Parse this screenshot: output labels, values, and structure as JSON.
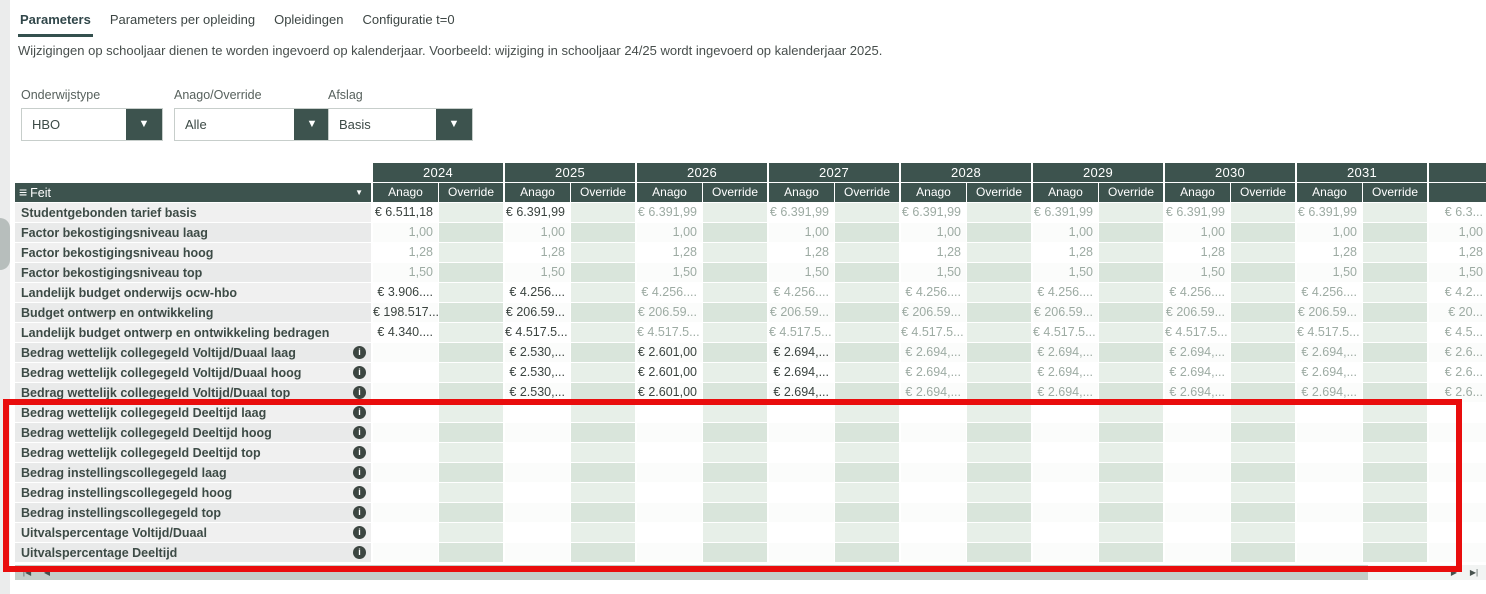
{
  "tabs": [
    {
      "label": "Parameters",
      "active": true
    },
    {
      "label": "Parameters per opleiding",
      "active": false
    },
    {
      "label": "Opleidingen",
      "active": false
    },
    {
      "label": "Configuratie t=0",
      "active": false
    }
  ],
  "note": "Wijzigingen op schooljaar dienen te worden ingevoerd op kalenderjaar. Voorbeeld: wijziging in schooljaar 24/25 wordt ingevoerd op kalenderjaar 2025.",
  "filters": [
    {
      "label": "Onderwijstype",
      "value": "HBO"
    },
    {
      "label": "Anago/Override",
      "value": "Alle"
    },
    {
      "label": "Afslag",
      "value": "Basis"
    }
  ],
  "icons": {
    "dropdown_caret": "▼",
    "menu_icon": "≡",
    "feit_caret": "▼",
    "info_icon": "i",
    "scroll_first": "|◀",
    "scroll_prev": "◀",
    "scroll_next": "▶",
    "scroll_last": "▶|"
  },
  "table": {
    "row_header_label": "Feit",
    "years": [
      "2024",
      "2025",
      "2026",
      "2027",
      "2028",
      "2029",
      "2030",
      "2031"
    ],
    "subcolumns": [
      "Anago",
      "Override"
    ],
    "rows": [
      {
        "label": "Studentgebonden tarief basis",
        "info": false,
        "values": [
          "€ 6.511,18",
          "€ 6.391,99",
          "€ 6.391,99",
          "€ 6.391,99",
          "€ 6.391,99",
          "€ 6.391,99",
          "€ 6.391,99",
          "€ 6.391,99"
        ],
        "dark": [
          true,
          true,
          false,
          false,
          false,
          false,
          false,
          false
        ],
        "extra": "€ 6.3..."
      },
      {
        "label": "Factor bekostigingsniveau laag",
        "info": false,
        "values": [
          "1,00",
          "1,00",
          "1,00",
          "1,00",
          "1,00",
          "1,00",
          "1,00",
          "1,00"
        ],
        "dark": [
          false,
          false,
          false,
          false,
          false,
          false,
          false,
          false
        ],
        "extra": "1,00"
      },
      {
        "label": "Factor bekostigingsniveau hoog",
        "info": false,
        "values": [
          "1,28",
          "1,28",
          "1,28",
          "1,28",
          "1,28",
          "1,28",
          "1,28",
          "1,28"
        ],
        "dark": [
          false,
          false,
          false,
          false,
          false,
          false,
          false,
          false
        ],
        "extra": "1,28"
      },
      {
        "label": "Factor bekostigingsniveau top",
        "info": false,
        "values": [
          "1,50",
          "1,50",
          "1,50",
          "1,50",
          "1,50",
          "1,50",
          "1,50",
          "1,50"
        ],
        "dark": [
          false,
          false,
          false,
          false,
          false,
          false,
          false,
          false
        ],
        "extra": "1,50"
      },
      {
        "label": "Landelijk budget onderwijs ocw-hbo",
        "info": false,
        "values": [
          "€ 3.906....",
          "€ 4.256....",
          "€ 4.256....",
          "€ 4.256....",
          "€ 4.256....",
          "€ 4.256....",
          "€ 4.256....",
          "€ 4.256...."
        ],
        "dark": [
          true,
          true,
          false,
          false,
          false,
          false,
          false,
          false
        ],
        "extra": "€ 4.2..."
      },
      {
        "label": "Budget ontwerp en ontwikkeling",
        "info": false,
        "values": [
          "€ 198.517...",
          "€ 206.59...",
          "€ 206.59...",
          "€ 206.59...",
          "€ 206.59...",
          "€ 206.59...",
          "€ 206.59...",
          "€ 206.59..."
        ],
        "dark": [
          true,
          true,
          false,
          false,
          false,
          false,
          false,
          false
        ],
        "extra": "€ 20..."
      },
      {
        "label": "Landelijk budget ontwerp en ontwikkeling bedragen",
        "info": false,
        "values": [
          "€ 4.340....",
          "€ 4.517.5...",
          "€ 4.517.5...",
          "€ 4.517.5...",
          "€ 4.517.5...",
          "€ 4.517.5...",
          "€ 4.517.5...",
          "€ 4.517.5..."
        ],
        "dark": [
          true,
          true,
          false,
          false,
          false,
          false,
          false,
          false
        ],
        "extra": "€ 4.5..."
      },
      {
        "label": "Bedrag wettelijk collegegeld Voltijd/Duaal laag",
        "info": true,
        "values": [
          "",
          "€ 2.530,...",
          "€ 2.601,00",
          "€ 2.694,...",
          "€ 2.694,...",
          "€ 2.694,...",
          "€ 2.694,...",
          "€ 2.694,..."
        ],
        "dark": [
          false,
          true,
          true,
          true,
          false,
          false,
          false,
          false
        ],
        "extra": "€ 2.6..."
      },
      {
        "label": "Bedrag wettelijk collegegeld Voltijd/Duaal hoog",
        "info": true,
        "values": [
          "",
          "€ 2.530,...",
          "€ 2.601,00",
          "€ 2.694,...",
          "€ 2.694,...",
          "€ 2.694,...",
          "€ 2.694,...",
          "€ 2.694,..."
        ],
        "dark": [
          false,
          true,
          true,
          true,
          false,
          false,
          false,
          false
        ],
        "extra": "€ 2.6..."
      },
      {
        "label": "Bedrag wettelijk collegegeld Voltijd/Duaal top",
        "info": true,
        "values": [
          "",
          "€ 2.530,...",
          "€ 2.601,00",
          "€ 2.694,...",
          "€ 2.694,...",
          "€ 2.694,...",
          "€ 2.694,...",
          "€ 2.694,..."
        ],
        "dark": [
          false,
          true,
          true,
          true,
          false,
          false,
          false,
          false
        ],
        "extra": "€ 2.6..."
      },
      {
        "label": "Bedrag wettelijk collegegeld Deeltijd laag",
        "info": true,
        "values": [
          "",
          "",
          "",
          "",
          "",
          "",
          "",
          ""
        ],
        "dark": [
          false,
          false,
          false,
          false,
          false,
          false,
          false,
          false
        ],
        "extra": ""
      },
      {
        "label": "Bedrag wettelijk collegegeld Deeltijd hoog",
        "info": true,
        "values": [
          "",
          "",
          "",
          "",
          "",
          "",
          "",
          ""
        ],
        "dark": [
          false,
          false,
          false,
          false,
          false,
          false,
          false,
          false
        ],
        "extra": ""
      },
      {
        "label": "Bedrag wettelijk collegegeld Deeltijd top",
        "info": true,
        "values": [
          "",
          "",
          "",
          "",
          "",
          "",
          "",
          ""
        ],
        "dark": [
          false,
          false,
          false,
          false,
          false,
          false,
          false,
          false
        ],
        "extra": ""
      },
      {
        "label": "Bedrag instellingscollegegeld laag",
        "info": true,
        "values": [
          "",
          "",
          "",
          "",
          "",
          "",
          "",
          ""
        ],
        "dark": [
          false,
          false,
          false,
          false,
          false,
          false,
          false,
          false
        ],
        "extra": ""
      },
      {
        "label": "Bedrag instellingscollegegeld hoog",
        "info": true,
        "values": [
          "",
          "",
          "",
          "",
          "",
          "",
          "",
          ""
        ],
        "dark": [
          false,
          false,
          false,
          false,
          false,
          false,
          false,
          false
        ],
        "extra": ""
      },
      {
        "label": "Bedrag instellingscollegegeld top",
        "info": true,
        "values": [
          "",
          "",
          "",
          "",
          "",
          "",
          "",
          ""
        ],
        "dark": [
          false,
          false,
          false,
          false,
          false,
          false,
          false,
          false
        ],
        "extra": ""
      },
      {
        "label": "Uitvalspercentage Voltijd/Duaal",
        "info": true,
        "values": [
          "",
          "",
          "",
          "",
          "",
          "",
          "",
          ""
        ],
        "dark": [
          false,
          false,
          false,
          false,
          false,
          false,
          false,
          false
        ],
        "extra": ""
      },
      {
        "label": "Uitvalspercentage Deeltijd",
        "info": true,
        "values": [
          "",
          "",
          "",
          "",
          "",
          "",
          "",
          ""
        ],
        "dark": [
          false,
          false,
          false,
          false,
          false,
          false,
          false,
          false
        ],
        "extra": ""
      }
    ]
  },
  "colors": {
    "header_bg": "#3d534e",
    "override_cell": "#d9e5db",
    "override_cell_alt": "#e7efe8",
    "row_label_bg": "#f0f0f0",
    "value_dark": "#3a433f",
    "value_gray": "#9daba3",
    "annotation_red": "#e90d0d",
    "tab_accent": "#34504e"
  }
}
